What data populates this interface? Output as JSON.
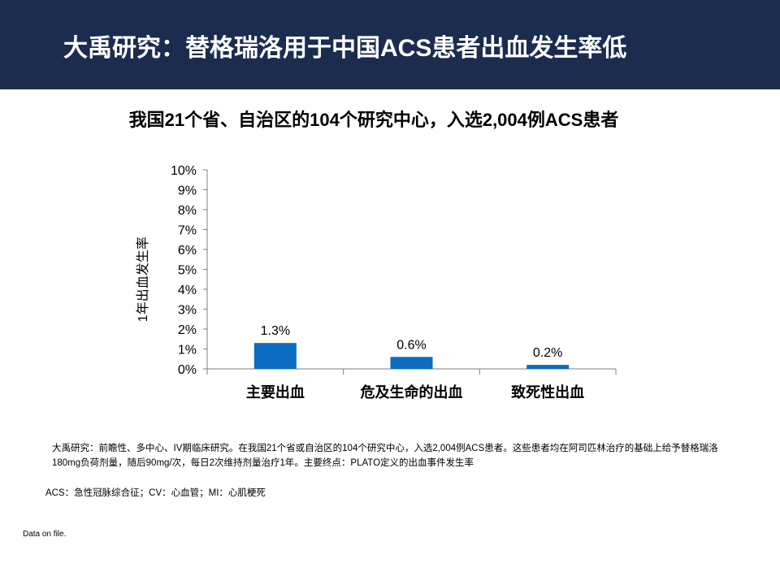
{
  "header": {
    "title": "大禹研究：替格瑞洛用于中国ACS患者出血发生率低",
    "bg_color": "#1c2c4e"
  },
  "subtitle": "我国21个省、自治区的104个研究中心，入选2,004例ACS患者",
  "chart_data": {
    "type": "bar",
    "categories": [
      "主要出血",
      "危及生命的出血",
      "致死性出血"
    ],
    "values": [
      1.3,
      0.6,
      0.2
    ],
    "data_labels": [
      "1.3%",
      "0.6%",
      "0.2%"
    ],
    "ylabel": "1年出血发生率",
    "xlabel": "",
    "ylim": [
      0,
      10
    ],
    "yticks": [
      "0%",
      "1%",
      "2%",
      "3%",
      "4%",
      "5%",
      "6%",
      "7%",
      "8%",
      "9%",
      "10%"
    ],
    "bar_color": "#0b6cc2",
    "grid": false,
    "legend": "none"
  },
  "footnote": "大禹研究：前瞻性、多中心、IV期临床研究。在我国21个省或自治区的104个研究中心，入选2,004例ACS患者。这些患者均在阿司匹林治疗的基础上给予替格瑞洛180mg负荷剂量，随后90mg/次，每日2次维持剂量治疗1年。主要终点：PLATO定义的出血事件发生率",
  "abbreviations": "ACS：急性冠脉综合征；CV：心血管；MI：心肌梗死",
  "source": "Data on file."
}
